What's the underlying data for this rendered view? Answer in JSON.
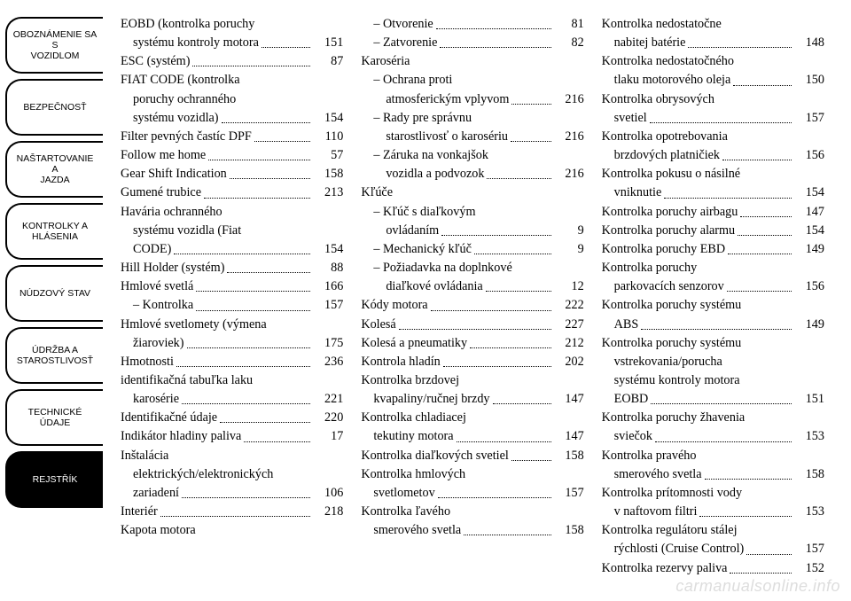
{
  "tabs": [
    {
      "lines": [
        "OBOZNÁMENIE SA S",
        "VOZIDLOM"
      ],
      "active": false
    },
    {
      "lines": [
        "BEZPEČNOSŤ"
      ],
      "active": false
    },
    {
      "lines": [
        "NAŠTARTOVANIE A",
        "JAZDA"
      ],
      "active": false
    },
    {
      "lines": [
        "KONTROLKY A",
        "HLÁSENIA"
      ],
      "active": false
    },
    {
      "lines": [
        "NÚDZOVÝ STAV"
      ],
      "active": false
    },
    {
      "lines": [
        "ÚDRŽBA A",
        "STAROSTLIVOSŤ"
      ],
      "active": false
    },
    {
      "lines": [
        "TECHNICKÉ ÚDAJE"
      ],
      "active": false
    },
    {
      "lines": [
        "REJSTŘÍK"
      ],
      "active": true
    }
  ],
  "cols": [
    [
      {
        "t": "EOBD (kontrolka poruchy"
      },
      {
        "t": "systému kontroly motora",
        "p": "151",
        "i": 1
      },
      {
        "t": "ESC (systém)",
        "p": "87"
      },
      {
        "t": "FIAT CODE (kontrolka"
      },
      {
        "t": "poruchy ochranného",
        "i": 1
      },
      {
        "t": "systému vozidla)",
        "p": "154",
        "i": 1
      },
      {
        "t": "Filter pevných častíc DPF",
        "p": "110"
      },
      {
        "t": "Follow me home",
        "p": "57"
      },
      {
        "t": "Gear Shift Indication",
        "p": "158"
      },
      {
        "t": "Gumené trubice",
        "p": "213"
      },
      {
        "t": "Havária ochranného"
      },
      {
        "t": "systému vozidla (Fiat",
        "i": 1
      },
      {
        "t": "CODE)",
        "p": "154",
        "i": 1
      },
      {
        "t": "Hill Holder (systém)",
        "p": "88"
      },
      {
        "t": "Hmlové svetlá",
        "p": "166"
      },
      {
        "t": "– Kontrolka",
        "p": "157",
        "i": 1
      },
      {
        "t": "Hmlové svetlomety (výmena"
      },
      {
        "t": "žiaroviek)",
        "p": "175",
        "i": 1
      },
      {
        "t": "Hmotnosti",
        "p": "236"
      },
      {
        "t": "identifikačná tabuľka laku"
      },
      {
        "t": "karosérie",
        "p": "221",
        "i": 1
      },
      {
        "t": "Identifikačné údaje",
        "p": "220"
      },
      {
        "t": "Indikátor hladiny paliva",
        "p": "17"
      },
      {
        "t": "Inštalácia"
      },
      {
        "t": "elektrických/elektronických",
        "i": 1
      },
      {
        "t": "zariadení",
        "p": "106",
        "i": 1
      },
      {
        "t": "Interiér",
        "p": "218"
      },
      {
        "t": "Kapota motora"
      }
    ],
    [
      {
        "t": "– Otvorenie",
        "p": "81",
        "i": 1
      },
      {
        "t": "– Zatvorenie",
        "p": "82",
        "i": 1
      },
      {
        "t": "Karoséria"
      },
      {
        "t": "– Ochrana proti",
        "i": 1
      },
      {
        "t": "atmosferickým vplyvom",
        "p": "216",
        "i": 2
      },
      {
        "t": "– Rady pre správnu",
        "i": 1
      },
      {
        "t": "starostlivosť o karosériu",
        "p": "216",
        "i": 2
      },
      {
        "t": "– Záruka na vonkajšok",
        "i": 1
      },
      {
        "t": "vozidla a podvozok",
        "p": "216",
        "i": 2
      },
      {
        "t": "Kľúče"
      },
      {
        "t": "– Kľúč s diaľkovým",
        "i": 1
      },
      {
        "t": "ovládaním",
        "p": "9",
        "i": 2
      },
      {
        "t": "– Mechanický kľúč",
        "p": "9",
        "i": 1
      },
      {
        "t": "– Požiadavka na doplnkové",
        "i": 1
      },
      {
        "t": "diaľkové ovládania",
        "p": "12",
        "i": 2
      },
      {
        "t": "Kódy motora",
        "p": "222"
      },
      {
        "t": "Kolesá",
        "p": "227"
      },
      {
        "t": "Kolesá a pneumatiky",
        "p": "212"
      },
      {
        "t": "Kontrola hladín",
        "p": "202"
      },
      {
        "t": "Kontrolka brzdovej"
      },
      {
        "t": "kvapaliny/ručnej brzdy",
        "p": "147",
        "i": 1
      },
      {
        "t": "Kontrolka chladiacej"
      },
      {
        "t": "tekutiny motora",
        "p": "147",
        "i": 1
      },
      {
        "t": "Kontrolka diaľkových svetiel",
        "p": "158"
      },
      {
        "t": "Kontrolka hmlových"
      },
      {
        "t": "svetlometov",
        "p": "157",
        "i": 1
      },
      {
        "t": "Kontrolka ľavého"
      },
      {
        "t": "smerového svetla",
        "p": "158",
        "i": 1
      }
    ],
    [
      {
        "t": "Kontrolka nedostatočne"
      },
      {
        "t": "nabitej batérie",
        "p": "148",
        "i": 1
      },
      {
        "t": "Kontrolka nedostatočného"
      },
      {
        "t": "tlaku motorového oleja",
        "p": "150",
        "i": 1
      },
      {
        "t": "Kontrolka obrysových"
      },
      {
        "t": "svetiel",
        "p": "157",
        "i": 1
      },
      {
        "t": "Kontrolka opotrebovania"
      },
      {
        "t": "brzdových platničiek",
        "p": "156",
        "i": 1
      },
      {
        "t": "Kontrolka pokusu o násilné"
      },
      {
        "t": "vniknutie",
        "p": "154",
        "i": 1
      },
      {
        "t": "Kontrolka poruchy airbagu",
        "p": "147"
      },
      {
        "t": "Kontrolka poruchy alarmu",
        "p": "154"
      },
      {
        "t": "Kontrolka poruchy EBD",
        "p": "149"
      },
      {
        "t": "Kontrolka poruchy"
      },
      {
        "t": "parkovacích senzorov",
        "p": "156",
        "i": 1
      },
      {
        "t": "Kontrolka poruchy systému"
      },
      {
        "t": "ABS",
        "p": "149",
        "i": 1
      },
      {
        "t": "Kontrolka poruchy systému"
      },
      {
        "t": "vstrekovania/porucha",
        "i": 1
      },
      {
        "t": "systému kontroly motora",
        "i": 1
      },
      {
        "t": "EOBD",
        "p": "151",
        "i": 1
      },
      {
        "t": "Kontrolka poruchy žhavenia"
      },
      {
        "t": "sviečok",
        "p": "153",
        "i": 1
      },
      {
        "t": "Kontrolka pravého"
      },
      {
        "t": "smerového svetla",
        "p": "158",
        "i": 1
      },
      {
        "t": "Kontrolka prítomnosti vody"
      },
      {
        "t": "v naftovom filtri",
        "p": "153",
        "i": 1
      },
      {
        "t": "Kontrolka regulátoru stálej"
      },
      {
        "t": "rýchlosti (Cruise Control)",
        "p": "157",
        "i": 1
      },
      {
        "t": "Kontrolka rezervy paliva",
        "p": "152"
      }
    ]
  ],
  "watermark": "carmanualsonline.info"
}
